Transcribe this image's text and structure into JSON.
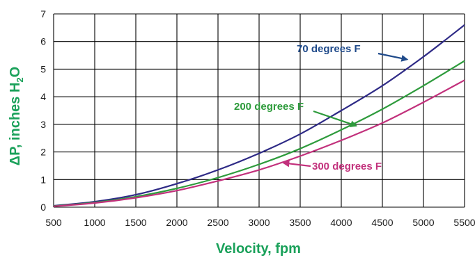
{
  "chart_data": {
    "type": "line",
    "title": "",
    "xlabel": "Velocity, fpm",
    "ylabel": "ΔP, inches H2O",
    "ylabel_parts": {
      "lead": "ΔP, inches H",
      "sub": "2",
      "tail": "O"
    },
    "xlim": [
      500,
      5500
    ],
    "ylim": [
      0,
      7
    ],
    "x_ticks": [
      500,
      1000,
      1500,
      2000,
      2500,
      3000,
      3500,
      4000,
      4500,
      5000,
      5500
    ],
    "y_ticks": [
      0,
      1,
      2,
      3,
      4,
      5,
      6,
      7
    ],
    "grid": true,
    "x": [
      500,
      1000,
      1500,
      2000,
      2500,
      3000,
      3500,
      4000,
      4500,
      5000,
      5500
    ],
    "series": [
      {
        "name": "70 degrees F",
        "color": "#2e2a86",
        "values": [
          0.05,
          0.2,
          0.45,
          0.85,
          1.35,
          1.95,
          2.65,
          3.5,
          4.4,
          5.45,
          6.6
        ]
      },
      {
        "name": "200 degrees F",
        "color": "#2e9b3c",
        "values": [
          0.04,
          0.17,
          0.38,
          0.68,
          1.07,
          1.55,
          2.12,
          2.8,
          3.55,
          4.4,
          5.3
        ]
      },
      {
        "name": "300 degrees F",
        "color": "#c2317c",
        "values": [
          0.03,
          0.15,
          0.34,
          0.6,
          0.95,
          1.35,
          1.85,
          2.42,
          3.05,
          3.8,
          4.6
        ]
      }
    ],
    "annotations": [
      {
        "text": "70 degrees F",
        "color": "#1f4a8a",
        "points_to": {
          "x": 4800,
          "y": 5.35
        }
      },
      {
        "text": "200 degrees F",
        "color": "#2e9b3c",
        "points_to": {
          "x": 4180,
          "y": 2.95
        }
      },
      {
        "text": "300 degrees F",
        "color": "#c2317c",
        "points_to": {
          "x": 3300,
          "y": 1.6
        }
      }
    ]
  }
}
